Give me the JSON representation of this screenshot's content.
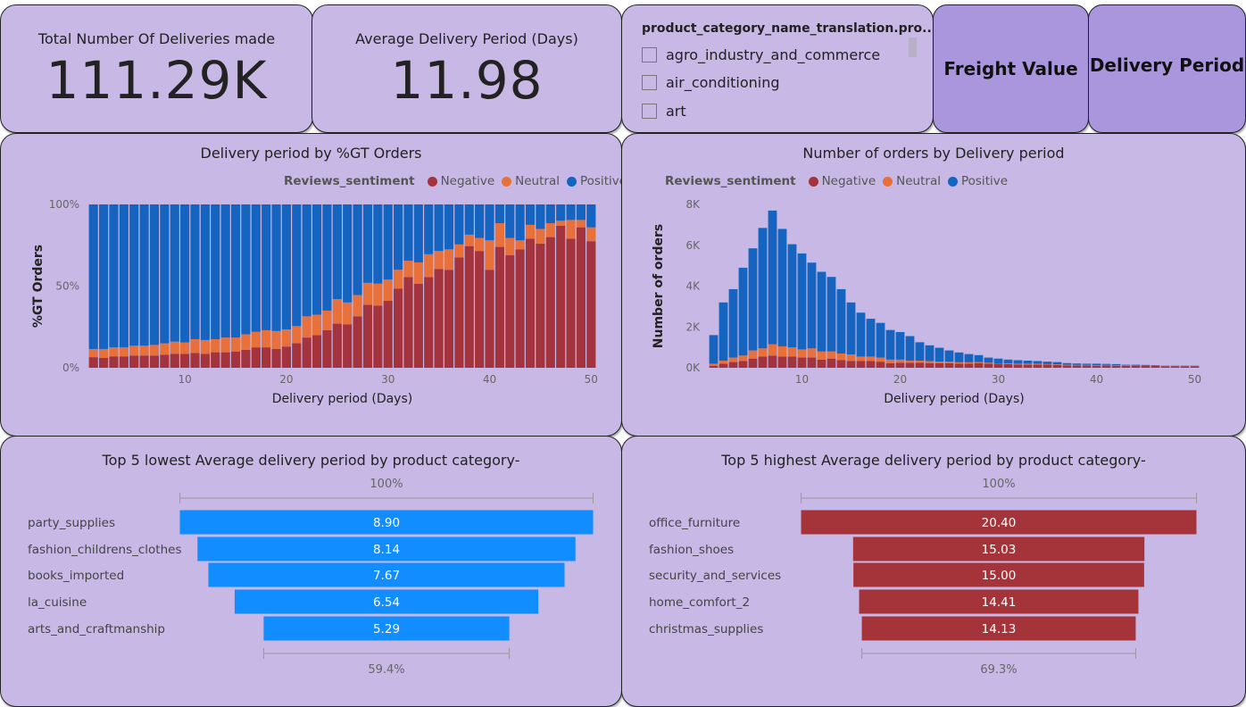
{
  "kpis": [
    {
      "label": "Total Number Of Deliveries made",
      "value": "111.29K"
    },
    {
      "label": "Average Delivery Period (Days)",
      "value": "11.98"
    }
  ],
  "slicer": {
    "title": "product_category_name_translation.pro...",
    "items": [
      "agro_industry_and_commerce",
      "air_conditioning",
      "art"
    ]
  },
  "buttons": {
    "freight": "Freight Value",
    "delivery": "Delivery Period"
  },
  "colors": {
    "panel": "#c7b8e6",
    "button": "#aa96dc",
    "negative": "#a3333d",
    "neutral": "#e8703a",
    "positive": "#1565c0",
    "funnel_low": "#118dff",
    "funnel_high": "#a4343a"
  },
  "legend": {
    "title": "Reviews_sentiment",
    "items": [
      "Negative",
      "Neutral",
      "Positive"
    ]
  },
  "chart_data": [
    {
      "type": "bar",
      "stacked": "100%",
      "title": "Delivery period by %GT Orders",
      "xlabel": "Delivery period (Days)",
      "ylabel": "%GT Orders",
      "xticks": [
        "10",
        "20",
        "30",
        "40",
        "50"
      ],
      "yticks": [
        "0%",
        "50%",
        "100%"
      ],
      "ylim": [
        0,
        100
      ],
      "legend_position": "top-right",
      "x": [
        1,
        2,
        3,
        4,
        5,
        6,
        7,
        8,
        9,
        10,
        11,
        12,
        13,
        14,
        15,
        16,
        17,
        18,
        19,
        20,
        21,
        22,
        23,
        24,
        25,
        26,
        27,
        28,
        29,
        30,
        31,
        32,
        33,
        34,
        35,
        36,
        37,
        38,
        39,
        40,
        41,
        42,
        43,
        44,
        45,
        46,
        47,
        48,
        49,
        50
      ],
      "series": [
        {
          "name": "Negative",
          "values": [
            6.5,
            6,
            7,
            7,
            7.5,
            7.5,
            7.5,
            8,
            8.5,
            8.5,
            9,
            8.5,
            9.5,
            9.5,
            10,
            11,
            12.5,
            12.5,
            11.5,
            13,
            15,
            18.5,
            20,
            23,
            27,
            26.5,
            31.5,
            38.5,
            38,
            41,
            48.5,
            55.5,
            51.5,
            55.5,
            60.5,
            60,
            67.5,
            74.5,
            71.5,
            60,
            74,
            69,
            72.5,
            79,
            76,
            80,
            87,
            79,
            86,
            77.5
          ]
        },
        {
          "name": "Neutral",
          "values": [
            5,
            5.5,
            5.5,
            5.5,
            6,
            6,
            6.5,
            7,
            7.5,
            7,
            8.5,
            8.5,
            8,
            9,
            8.5,
            9.5,
            9.5,
            10.5,
            11,
            10.5,
            10.5,
            13,
            12.5,
            12,
            15,
            13.5,
            13,
            13.5,
            13.5,
            13,
            11.5,
            10,
            13,
            14,
            11,
            12.5,
            8,
            7,
            8,
            18,
            14.5,
            10.5,
            5.5,
            8.5,
            9,
            8.5,
            3,
            11.5,
            4.5,
            8.5
          ]
        },
        {
          "name": "Positive",
          "values": [
            88.5,
            88.5,
            87.5,
            87.5,
            86.5,
            86.5,
            86,
            85,
            84,
            84.5,
            82.5,
            83,
            82.5,
            81.5,
            81.5,
            79.5,
            78,
            77,
            77.5,
            76.5,
            74.5,
            68.5,
            67.5,
            65,
            58,
            60,
            55.5,
            48,
            48.5,
            46,
            40,
            34.5,
            35.5,
            30.5,
            28.5,
            27.5,
            24.5,
            18.5,
            20.5,
            22,
            11.5,
            20.5,
            22,
            12.5,
            15,
            11.5,
            10,
            9.5,
            9.5,
            14
          ]
        }
      ]
    },
    {
      "type": "bar",
      "stacked": "absolute",
      "title": "Number of orders by Delivery period",
      "xlabel": "Delivery period (Days)",
      "ylabel": "Number of orders",
      "xticks": [
        "10",
        "20",
        "30",
        "40",
        "50"
      ],
      "yticks": [
        "0K",
        "2K",
        "4K",
        "6K",
        "8K"
      ],
      "ylim": [
        0,
        8000
      ],
      "legend_position": "top-left",
      "x": [
        1,
        2,
        3,
        4,
        5,
        6,
        7,
        8,
        9,
        10,
        11,
        12,
        13,
        14,
        15,
        16,
        17,
        18,
        19,
        20,
        21,
        22,
        23,
        24,
        25,
        26,
        27,
        28,
        29,
        30,
        31,
        32,
        33,
        34,
        35,
        36,
        37,
        38,
        39,
        40,
        41,
        42,
        43,
        44,
        45,
        46,
        47,
        48,
        49,
        50
      ],
      "series": [
        {
          "name": "Negative",
          "values": [
            100,
            200,
            280,
            330,
            450,
            550,
            600,
            550,
            550,
            500,
            500,
            400,
            450,
            380,
            330,
            330,
            330,
            300,
            220,
            250,
            250,
            250,
            230,
            220,
            220,
            200,
            200,
            220,
            200,
            200,
            180,
            160,
            150,
            150,
            150,
            140,
            120,
            110,
            110,
            100,
            120,
            100,
            100,
            110,
            110,
            100,
            70,
            70,
            70,
            70
          ]
        },
        {
          "name": "Neutral",
          "values": [
            100,
            150,
            220,
            270,
            400,
            400,
            550,
            500,
            450,
            400,
            450,
            400,
            350,
            320,
            320,
            220,
            220,
            200,
            180,
            150,
            100,
            100,
            100,
            80,
            80,
            70,
            70,
            60,
            50,
            20,
            40,
            40,
            50,
            50,
            30,
            30,
            30,
            30,
            30,
            30,
            20,
            20,
            20,
            20,
            10,
            10,
            10,
            10,
            10,
            10
          ]
        },
        {
          "name": "Positive",
          "values": [
            1400,
            2850,
            3350,
            4300,
            5000,
            5900,
            6550,
            5750,
            5050,
            4700,
            4200,
            3900,
            3650,
            3150,
            2550,
            2150,
            1850,
            1700,
            1450,
            1350,
            1200,
            900,
            770,
            680,
            550,
            480,
            400,
            340,
            250,
            230,
            180,
            170,
            150,
            130,
            120,
            110,
            80,
            70,
            60,
            70,
            50,
            60,
            30,
            20,
            20,
            20,
            20,
            20,
            20,
            20
          ]
        }
      ]
    },
    {
      "type": "funnel",
      "title": "Top 5 lowest Average delivery period by product category-",
      "categories": [
        "party_supplies",
        "fashion_childrens_clothes",
        "books_imported",
        "la_cuisine",
        "arts_and_craftmanship"
      ],
      "values": [
        8.9,
        8.14,
        7.67,
        6.54,
        5.29
      ],
      "labels": [
        "8.90",
        "8.14",
        "7.67",
        "6.54",
        "5.29"
      ],
      "top_pct": "100%",
      "bottom_pct": "59.4%"
    },
    {
      "type": "funnel",
      "title": "Top 5 highest Average delivery period by product category-",
      "categories": [
        "office_furniture",
        "fashion_shoes",
        "security_and_services",
        "home_comfort_2",
        "christmas_supplies"
      ],
      "values": [
        20.4,
        15.03,
        15.0,
        14.41,
        14.13
      ],
      "labels": [
        "20.40",
        "15.03",
        "15.00",
        "14.41",
        "14.13"
      ],
      "top_pct": "100%",
      "bottom_pct": "69.3%"
    }
  ]
}
